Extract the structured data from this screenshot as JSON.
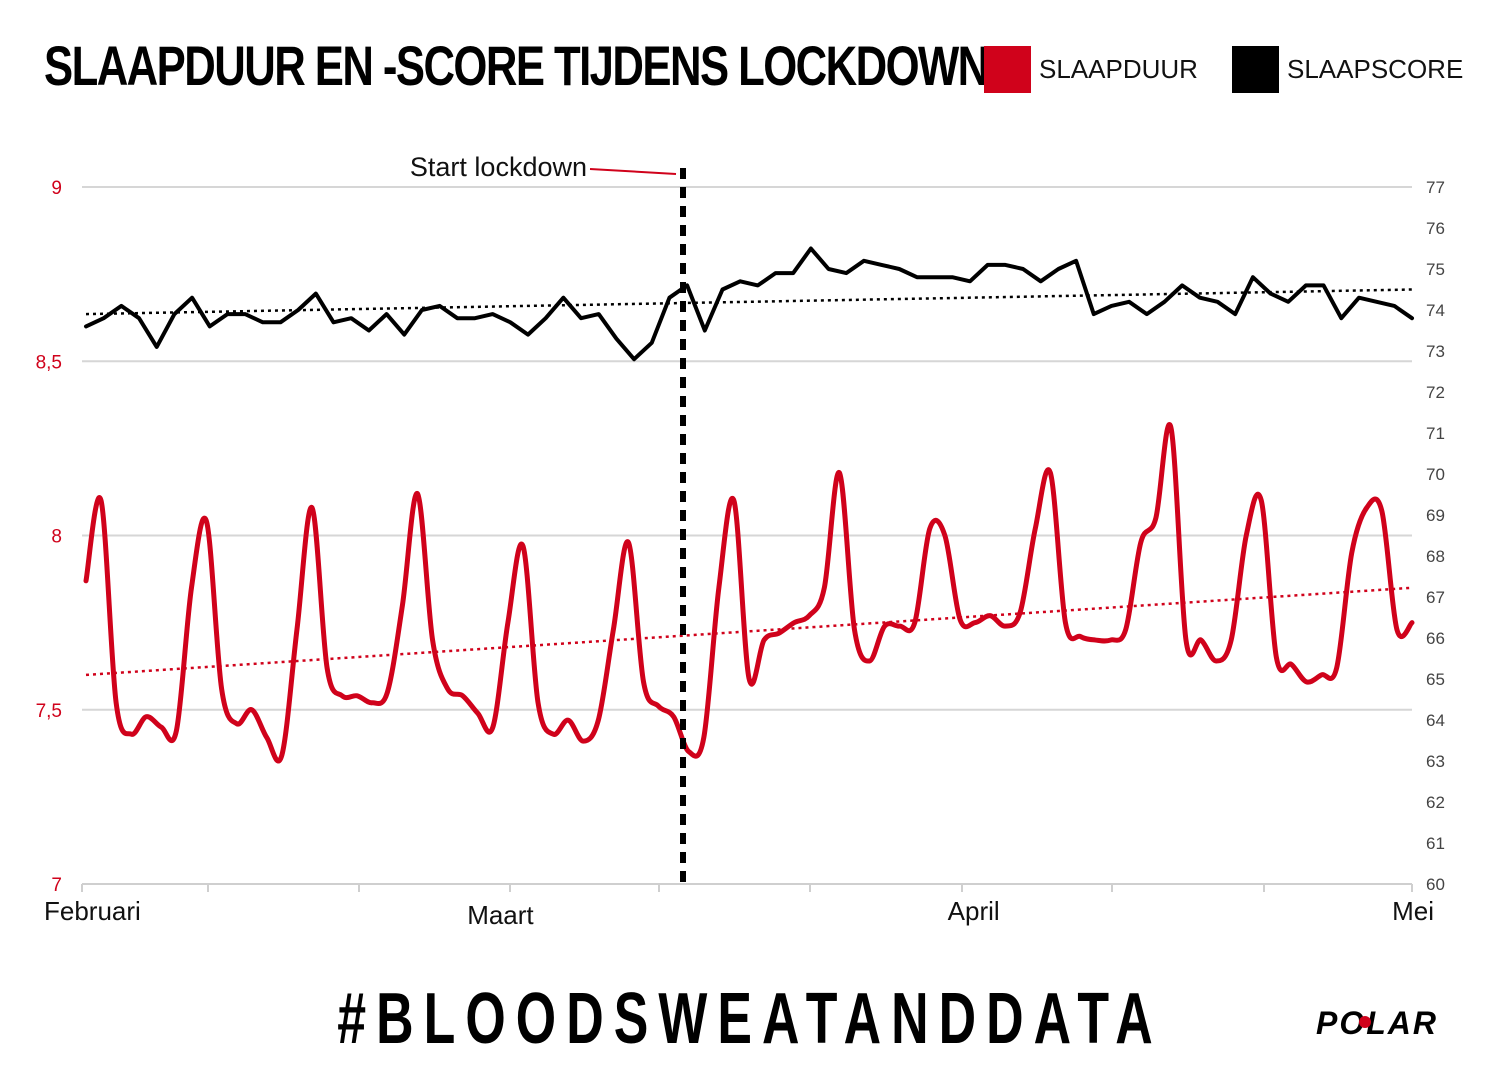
{
  "title": "SLAAPDUUR EN -SCORE TIJDENS LOCKDOWN",
  "legend": [
    {
      "label": "SLAAPDUUR",
      "color": "#d0021b"
    },
    {
      "label": "SLAAPSCORE",
      "color": "#000000"
    }
  ],
  "annotation": "Start lockdown",
  "hashtag": "#BLOODSWEATANDDATA",
  "logo_text": "POLAR",
  "chart_data": {
    "type": "line",
    "x_labels": [
      "Februari",
      "Maart",
      "April",
      "Mei"
    ],
    "y_left": {
      "min": 7,
      "max": 9,
      "ticks": [
        "7",
        "7,5",
        "8",
        "8,5",
        "9"
      ],
      "color": "#d0021b"
    },
    "y_right": {
      "min": 60,
      "max": 77,
      "ticks": [
        "60",
        "61",
        "62",
        "63",
        "64",
        "65",
        "66",
        "67",
        "68",
        "69",
        "70",
        "71",
        "72",
        "73",
        "74",
        "75",
        "76",
        "77"
      ]
    },
    "grid": true,
    "lockdown_day": 43,
    "series": [
      {
        "name": "SLAAPDUUR",
        "axis": "left",
        "color": "#d0021b",
        "values": [
          7.87,
          8.1,
          7.52,
          7.43,
          7.48,
          7.45,
          7.44,
          7.85,
          8.04,
          7.56,
          7.46,
          7.5,
          7.42,
          7.37,
          7.73,
          8.08,
          7.62,
          7.54,
          7.54,
          7.52,
          7.55,
          7.8,
          8.12,
          7.7,
          7.56,
          7.54,
          7.49,
          7.45,
          7.75,
          7.97,
          7.52,
          7.43,
          7.47,
          7.41,
          7.47,
          7.73,
          7.98,
          7.58,
          7.51,
          7.48,
          7.38,
          7.42,
          7.85,
          8.1,
          7.59,
          7.7,
          7.72,
          7.75,
          7.77,
          7.85,
          8.18,
          7.73,
          7.64,
          7.74,
          7.74,
          7.75,
          8.02,
          8.0,
          7.76,
          7.75,
          7.77,
          7.74,
          7.78,
          8.02,
          8.18,
          7.75,
          7.71,
          7.7,
          7.7,
          7.73,
          7.98,
          8.05,
          8.31,
          7.7,
          7.7,
          7.64,
          7.7,
          8.0,
          8.1,
          7.65,
          7.63,
          7.58,
          7.6,
          7.62,
          7.95,
          8.08,
          8.07,
          7.73,
          7.75
        ]
      },
      {
        "name": "SLAAPSCORE",
        "axis": "right",
        "color": "#000000",
        "values": [
          73.6,
          73.8,
          74.1,
          73.8,
          73.1,
          73.9,
          74.3,
          73.6,
          73.9,
          73.9,
          73.7,
          73.7,
          74.0,
          74.4,
          73.7,
          73.8,
          73.5,
          73.9,
          73.4,
          74.0,
          74.1,
          73.8,
          73.8,
          73.9,
          73.7,
          73.4,
          73.8,
          74.3,
          73.8,
          73.9,
          73.3,
          72.8,
          73.2,
          74.3,
          74.6,
          73.5,
          74.5,
          74.7,
          74.6,
          74.9,
          74.9,
          75.5,
          75.0,
          74.9,
          75.2,
          75.1,
          75.0,
          74.8,
          74.8,
          74.8,
          74.7,
          75.1,
          75.1,
          75.0,
          74.7,
          75.0,
          75.2,
          73.9,
          74.1,
          74.2,
          73.9,
          74.2,
          74.6,
          74.3,
          74.2,
          73.9,
          74.8,
          74.4,
          74.2,
          74.6,
          74.6,
          73.8,
          74.3,
          74.2,
          74.1,
          73.8
        ]
      }
    ],
    "trendlines": [
      {
        "series": "SLAAPDUUR",
        "style": "dotted",
        "start": 7.6,
        "end": 7.85
      },
      {
        "series": "SLAAPSCORE",
        "style": "dotted",
        "start": 73.9,
        "end": 74.5
      }
    ]
  }
}
